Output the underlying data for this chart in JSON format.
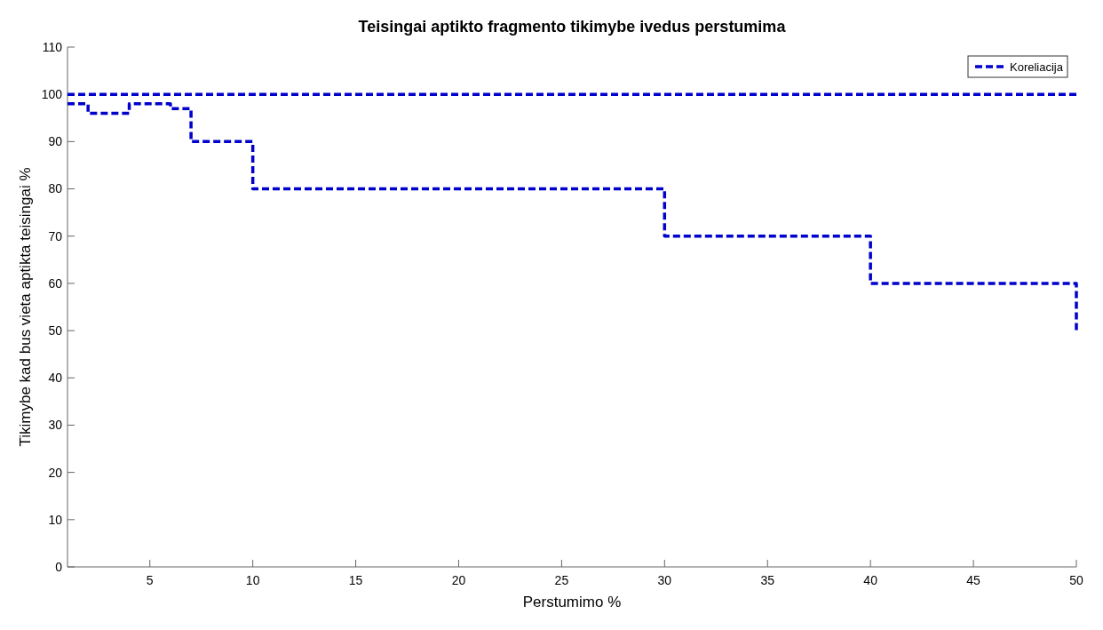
{
  "chart_data": {
    "type": "step",
    "title": "Teisingai aptikto fragmento tikimybe ivedus perstumima",
    "xlabel": "Perstumimo %",
    "ylabel": "Tikimybe kad bus vieta aptikta teisingai %",
    "series": [
      {
        "name": "Koreliacija",
        "color": "#0000cc",
        "x": [
          1,
          2,
          4,
          6,
          7,
          10,
          30,
          40,
          50
        ],
        "values": [
          98,
          96,
          98,
          97,
          90,
          80,
          70,
          60,
          50
        ]
      },
      {
        "color": "#0000cc",
        "x": [
          1,
          50
        ],
        "values": [
          100,
          100
        ]
      }
    ],
    "xlim": [
      1,
      50
    ],
    "xticks": [
      5,
      10,
      15,
      20,
      25,
      30,
      35,
      40,
      45,
      50
    ],
    "ylim": [
      0,
      110
    ],
    "yticks": [
      0,
      10,
      20,
      30,
      40,
      50,
      60,
      70,
      80,
      90,
      100,
      110
    ],
    "grid": false,
    "legend": "top right",
    "line_style": "dashed"
  }
}
